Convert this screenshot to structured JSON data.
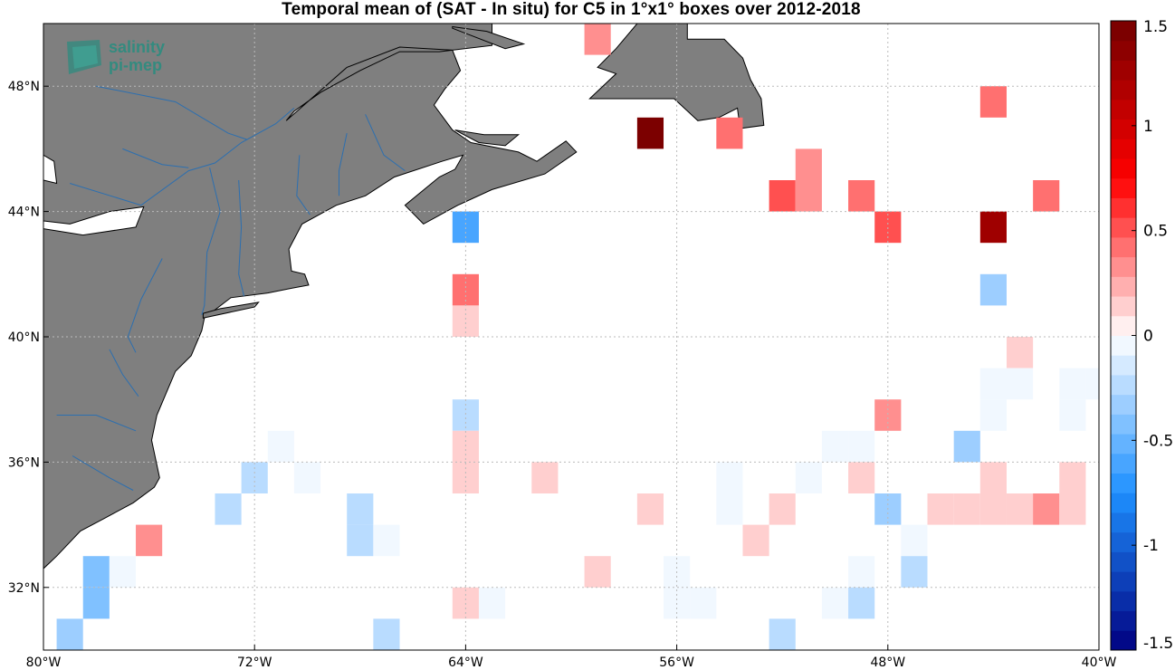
{
  "chart_data": {
    "type": "heatmap",
    "title": "Temporal mean of (SAT - In situ) for C5 in 1°x1° boxes over 2012-2018",
    "x_range": [
      -80,
      -40
    ],
    "y_range": [
      30,
      50
    ],
    "x_ticks": [
      {
        "value": -80,
        "label": "80°W"
      },
      {
        "value": -72,
        "label": "72°W"
      },
      {
        "value": -64,
        "label": "64°W"
      },
      {
        "value": -56,
        "label": "56°W"
      },
      {
        "value": -48,
        "label": "48°W"
      },
      {
        "value": -40,
        "label": "40°W"
      }
    ],
    "y_ticks": [
      {
        "value": 48,
        "label": "48°N"
      },
      {
        "value": 44,
        "label": "44°N"
      },
      {
        "value": 40,
        "label": "40°N"
      },
      {
        "value": 36,
        "label": "36°N"
      },
      {
        "value": 32,
        "label": "32°N"
      }
    ],
    "colorbar": {
      "range": [
        -1.5,
        1.5
      ],
      "ticks": [
        {
          "value": 1.5,
          "label": "1.5"
        },
        {
          "value": 1,
          "label": "1"
        },
        {
          "value": 0.5,
          "label": "0.5"
        },
        {
          "value": 0,
          "label": "0"
        },
        {
          "value": -0.5,
          "label": "-0.5"
        },
        {
          "value": -1,
          "label": "-1"
        },
        {
          "value": -1.5,
          "label": "-1.5"
        }
      ]
    },
    "grid": true,
    "cells": [
      {
        "lon": -59,
        "lat": 49.5,
        "value": 0.35
      },
      {
        "lon": -57,
        "lat": 46.5,
        "value": 1.45
      },
      {
        "lon": -54,
        "lat": 46.5,
        "value": 0.4
      },
      {
        "lon": -51,
        "lat": 45.5,
        "value": 0.35
      },
      {
        "lon": -52,
        "lat": 44.5,
        "value": 0.5
      },
      {
        "lon": -51,
        "lat": 44.5,
        "value": 0.35
      },
      {
        "lon": -49,
        "lat": 44.5,
        "value": 0.4
      },
      {
        "lon": -44,
        "lat": 47.5,
        "value": 0.4
      },
      {
        "lon": -42,
        "lat": 44.5,
        "value": 0.4
      },
      {
        "lon": -48,
        "lat": 43.5,
        "value": 0.55
      },
      {
        "lon": -44,
        "lat": 43.5,
        "value": 1.25
      },
      {
        "lon": -64,
        "lat": 43.5,
        "value": -0.6
      },
      {
        "lon": -64,
        "lat": 41.5,
        "value": 0.4
      },
      {
        "lon": -64,
        "lat": 40.5,
        "value": 0.1
      },
      {
        "lon": -44,
        "lat": 41.5,
        "value": -0.3
      },
      {
        "lon": -43,
        "lat": 39.5,
        "value": 0.15
      },
      {
        "lon": -44,
        "lat": 38.5,
        "value": -0.08
      },
      {
        "lon": -43,
        "lat": 38.5,
        "value": -0.08
      },
      {
        "lon": -41,
        "lat": 38.5,
        "value": -0.08
      },
      {
        "lon": -40,
        "lat": 38.5,
        "value": -0.08
      },
      {
        "lon": -44,
        "lat": 37.5,
        "value": -0.08
      },
      {
        "lon": -41,
        "lat": 37.5,
        "value": -0.08
      },
      {
        "lon": -48,
        "lat": 37.5,
        "value": 0.3
      },
      {
        "lon": -64,
        "lat": 37.5,
        "value": -0.25
      },
      {
        "lon": -64,
        "lat": 36.5,
        "value": 0.1
      },
      {
        "lon": -64,
        "lat": 35.5,
        "value": 0.1
      },
      {
        "lon": -61,
        "lat": 35.5,
        "value": 0.15
      },
      {
        "lon": -45,
        "lat": 36.5,
        "value": -0.3
      },
      {
        "lon": -50,
        "lat": 36.5,
        "value": -0.08
      },
      {
        "lon": -49,
        "lat": 36.5,
        "value": -0.08
      },
      {
        "lon": -71,
        "lat": 36.5,
        "value": -0.08
      },
      {
        "lon": -72,
        "lat": 35.5,
        "value": -0.2
      },
      {
        "lon": -70,
        "lat": 35.5,
        "value": -0.08
      },
      {
        "lon": -54,
        "lat": 35.5,
        "value": -0.08
      },
      {
        "lon": -51,
        "lat": 35.5,
        "value": -0.08
      },
      {
        "lon": -49,
        "lat": 35.5,
        "value": 0.1
      },
      {
        "lon": -44,
        "lat": 35.5,
        "value": 0.1
      },
      {
        "lon": -41,
        "lat": 35.5,
        "value": 0.15
      },
      {
        "lon": -73,
        "lat": 34.5,
        "value": -0.2
      },
      {
        "lon": -68,
        "lat": 34.5,
        "value": -0.25
      },
      {
        "lon": -57,
        "lat": 34.5,
        "value": 0.1
      },
      {
        "lon": -54,
        "lat": 34.5,
        "value": -0.08
      },
      {
        "lon": -52,
        "lat": 34.5,
        "value": 0.1
      },
      {
        "lon": -48,
        "lat": 34.5,
        "value": -0.35
      },
      {
        "lon": -46,
        "lat": 34.5,
        "value": 0.1
      },
      {
        "lon": -45,
        "lat": 34.5,
        "value": 0.1
      },
      {
        "lon": -44,
        "lat": 34.5,
        "value": 0.1
      },
      {
        "lon": -43,
        "lat": 34.5,
        "value": 0.1
      },
      {
        "lon": -42,
        "lat": 34.5,
        "value": 0.3
      },
      {
        "lon": -41,
        "lat": 34.5,
        "value": 0.15
      },
      {
        "lon": -76,
        "lat": 33.5,
        "value": 0.35
      },
      {
        "lon": -68,
        "lat": 33.5,
        "value": -0.25
      },
      {
        "lon": -67,
        "lat": 33.5,
        "value": -0.08
      },
      {
        "lon": -53,
        "lat": 33.5,
        "value": 0.1
      },
      {
        "lon": -47,
        "lat": 33.5,
        "value": -0.08
      },
      {
        "lon": -78,
        "lat": 32.5,
        "value": -0.4
      },
      {
        "lon": -77,
        "lat": 32.5,
        "value": -0.08
      },
      {
        "lon": -59,
        "lat": 32.5,
        "value": 0.15
      },
      {
        "lon": -56,
        "lat": 32.5,
        "value": -0.08
      },
      {
        "lon": -49,
        "lat": 32.5,
        "value": -0.08
      },
      {
        "lon": -47,
        "lat": 32.5,
        "value": -0.25
      },
      {
        "lon": -78,
        "lat": 31.5,
        "value": -0.45
      },
      {
        "lon": -64,
        "lat": 31.5,
        "value": 0.1
      },
      {
        "lon": -63,
        "lat": 31.5,
        "value": -0.08
      },
      {
        "lon": -56,
        "lat": 31.5,
        "value": -0.08
      },
      {
        "lon": -55,
        "lat": 31.5,
        "value": -0.08
      },
      {
        "lon": -50,
        "lat": 31.5,
        "value": -0.08
      },
      {
        "lon": -49,
        "lat": 31.5,
        "value": -0.2
      },
      {
        "lon": -79,
        "lat": 30.5,
        "value": -0.3
      },
      {
        "lon": -67,
        "lat": 30.5,
        "value": -0.2
      },
      {
        "lon": -52,
        "lat": 30.5,
        "value": -0.2
      }
    ]
  },
  "colors": {
    "land": "#7f7f7f",
    "rivers": "#2c6fb0",
    "grid": "#bbbbbb"
  },
  "logo": {
    "line1": "salinity",
    "line2": "pi-mep"
  }
}
